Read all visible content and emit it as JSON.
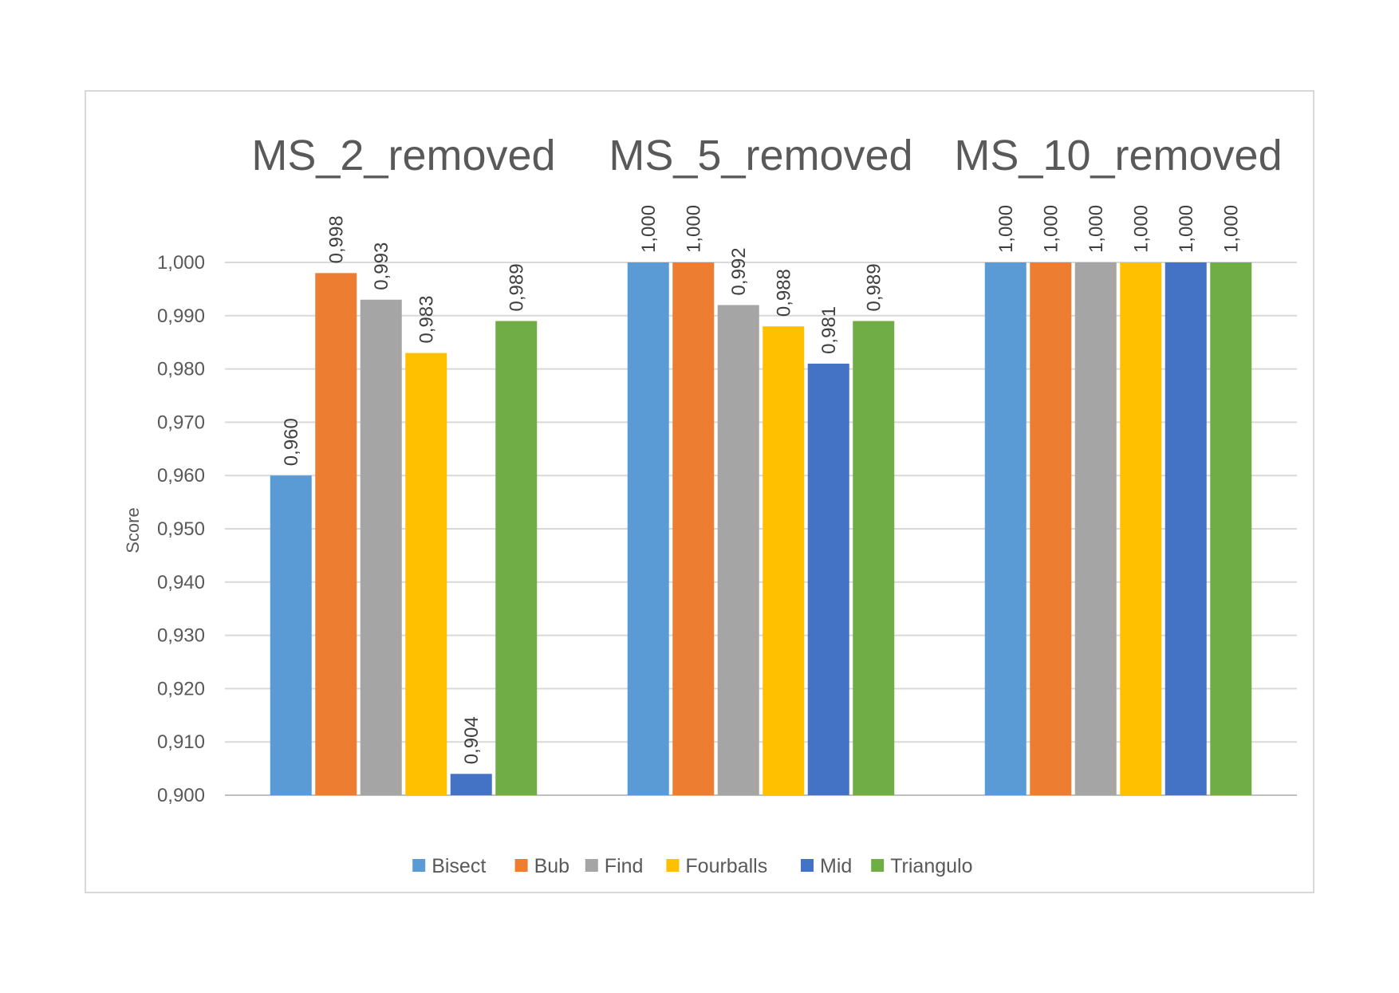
{
  "chart_data": {
    "type": "bar",
    "ylabel": "Score",
    "ylim": [
      0.9,
      1.0
    ],
    "y_ticks": [
      0.9,
      0.91,
      0.92,
      0.93,
      0.94,
      0.95,
      0.96,
      0.97,
      0.98,
      0.99,
      1.0
    ],
    "y_tick_labels": [
      "0,900",
      "0,910",
      "0,920",
      "0,930",
      "0,940",
      "0,950",
      "0,960",
      "0,970",
      "0,980",
      "0,990",
      "1,000"
    ],
    "categories": [
      "MS_2_removed",
      "MS_5_removed",
      "MS_10_removed"
    ],
    "legend_position": "bottom",
    "grid": true,
    "series": [
      {
        "name": "Bisect",
        "color": "#5B9BD5",
        "values": [
          0.96,
          1.0,
          1.0
        ],
        "labels": [
          "0,960",
          "1,000",
          "1,000"
        ]
      },
      {
        "name": "Bub",
        "color": "#ED7D31",
        "values": [
          0.998,
          1.0,
          1.0
        ],
        "labels": [
          "0,998",
          "1,000",
          "1,000"
        ]
      },
      {
        "name": "Find",
        "color": "#A5A5A5",
        "values": [
          0.993,
          0.992,
          1.0
        ],
        "labels": [
          "0,993",
          "0,992",
          "1,000"
        ]
      },
      {
        "name": "Fourballs",
        "color": "#FFC000",
        "values": [
          0.983,
          0.988,
          1.0
        ],
        "labels": [
          "0,983",
          "0,988",
          "1,000"
        ]
      },
      {
        "name": "Mid",
        "color": "#4472C4",
        "values": [
          0.904,
          0.981,
          1.0
        ],
        "labels": [
          "0,904",
          "0,981",
          "1,000"
        ]
      },
      {
        "name": "Triangulo",
        "color": "#70AD47",
        "values": [
          0.989,
          0.989,
          1.0
        ],
        "labels": [
          "0,989",
          "0,989",
          "1,000"
        ]
      }
    ]
  }
}
